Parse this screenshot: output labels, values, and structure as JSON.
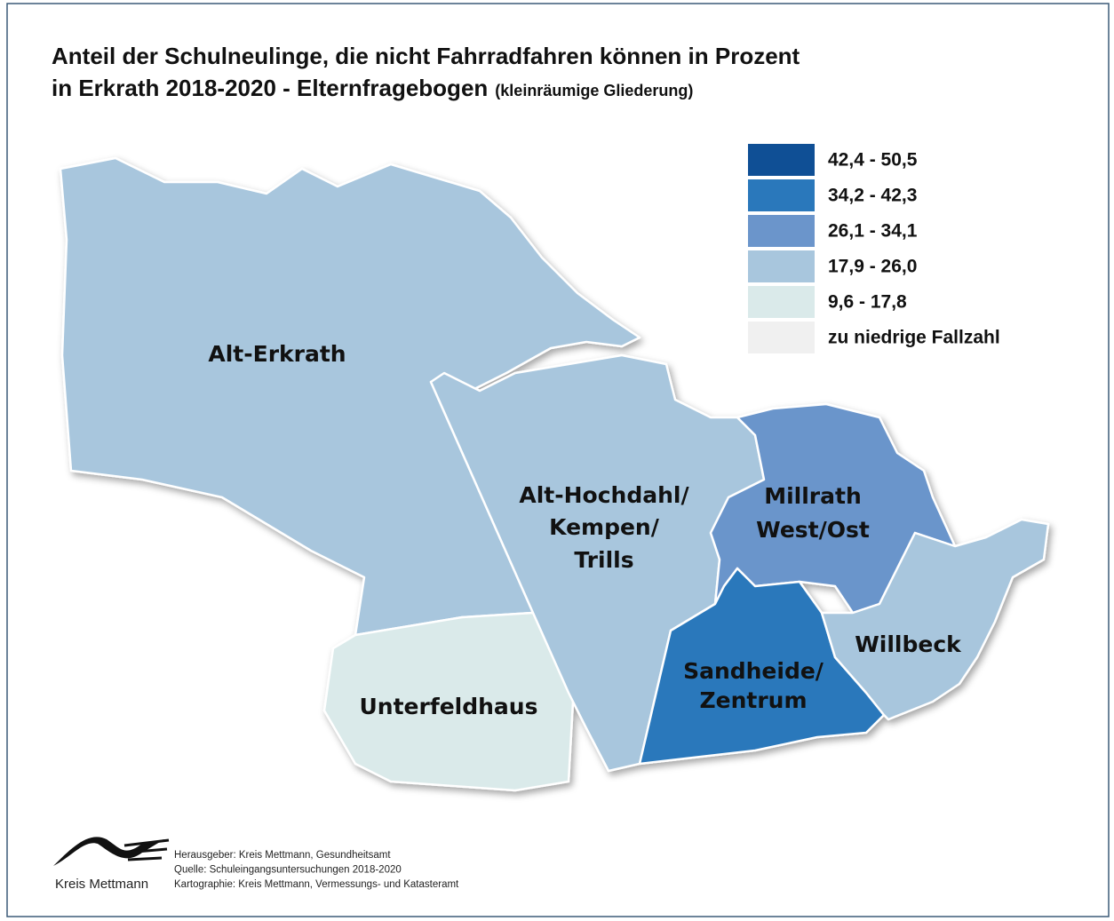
{
  "header": {
    "title": "Anteil der Schulneulinge, die nicht Fahrradfahren können in Prozent",
    "subtitle": "in Erkrath 2018-2020 - Elternfragebogen",
    "note": "(kleinräumige Gliederung)"
  },
  "legend": [
    {
      "label": "42,4 - 50,5",
      "color": "#0f4f95"
    },
    {
      "label": "34,2 - 42,3",
      "color": "#2a78bb"
    },
    {
      "label": "26,1 - 34,1",
      "color": "#6b95cb"
    },
    {
      "label": "17,9 - 26,0",
      "color": "#a8c6dd"
    },
    {
      "label": "9,6 - 17,8",
      "color": "#daeaea"
    },
    {
      "label": "zu niedrige Fallzahl",
      "color": "#f0f0f0"
    }
  ],
  "regions": [
    {
      "label": [
        "Alt-Erkrath"
      ],
      "color": "#a8c6dd"
    },
    {
      "label": [
        "Unterfeldhaus"
      ],
      "color": "#daeaea"
    },
    {
      "label": [
        "Alt-Hochdahl/",
        "Kempen/",
        "Trills"
      ],
      "color": "#a8c6dd"
    },
    {
      "label": [
        "Millrath",
        "West/Ost"
      ],
      "color": "#6b95cb"
    },
    {
      "label": [
        "Sandheide/",
        "Zentrum"
      ],
      "color": "#2a78bb"
    },
    {
      "label": [
        "Willbeck"
      ],
      "color": "#a8c6dd"
    }
  ],
  "footer": {
    "logo": "Kreis Mettmann",
    "lines": [
      "Herausgeber: Kreis Mettmann, Gesundheitsamt",
      "Quelle: Schuleingangsuntersuchungen 2018-2020",
      "Kartographie: Kreis Mettmann, Vermessungs- und Katasteramt"
    ]
  }
}
